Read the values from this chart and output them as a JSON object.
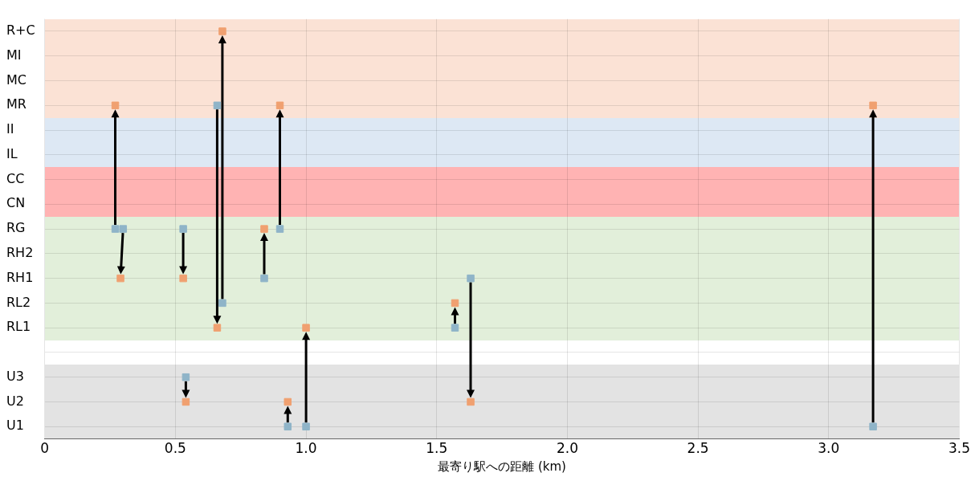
{
  "chart_data": {
    "type": "scatter",
    "orientation": "horizontal",
    "xlabel": "最寄り駅への距離 (km)",
    "xlim": [
      0,
      3.5
    ],
    "xticks": [
      0,
      0.5,
      {
        "value": 1,
        "label": "1.0"
      },
      1.5,
      {
        "value": 2,
        "label": "2.0"
      },
      2.5,
      {
        "value": 3,
        "label": "3.0"
      },
      3.5
    ],
    "categories": [
      "R+C",
      "MI",
      "MC",
      "MR",
      "II",
      "IL",
      "CC",
      "CN",
      "RG",
      "RH2",
      "RH1",
      "RL2",
      "RL1",
      null,
      "U3",
      "U2",
      "U1"
    ],
    "grid": true,
    "marker": "square",
    "bands": [
      {
        "axis": "y",
        "from": "R+C",
        "to": "MR",
        "color": "#fbe2d5"
      },
      {
        "axis": "y",
        "from": "II",
        "to": "IL",
        "color": "#dde8f4"
      },
      {
        "axis": "y",
        "from": "CC",
        "to": "CN",
        "color": "#ffb3b3"
      },
      {
        "axis": "y",
        "from": "RG",
        "to": "RL1",
        "color": "#e2efda"
      },
      {
        "axis": "y",
        "from": "U3",
        "to": "U1",
        "color": "#e3e3e3"
      }
    ],
    "series": [
      {
        "type": "scatter",
        "color": "#8fb4c8",
        "x": [
          "RG",
          "RG",
          "RG",
          "U3",
          "MR",
          "RL2",
          "RG",
          "RH1",
          "U1",
          "U1",
          "RL1",
          "RH1",
          "U1"
        ],
        "values": [
          0.27,
          0.3,
          0.53,
          0.54,
          0.66,
          0.68,
          0.9,
          0.84,
          0.93,
          1.0,
          1.57,
          1.63,
          3.17
        ]
      },
      {
        "type": "scatter",
        "color": "#f0a070",
        "x": [
          "MR",
          "RH1",
          "RH1",
          "U2",
          "RL1",
          "R+C",
          "MR",
          "RG",
          "U2",
          "RL1",
          "RL2",
          "U2",
          "MR"
        ],
        "values": [
          0.27,
          0.29,
          0.53,
          0.54,
          0.66,
          0.68,
          0.9,
          0.84,
          0.93,
          1.0,
          1.57,
          1.63,
          3.17
        ]
      }
    ]
  }
}
